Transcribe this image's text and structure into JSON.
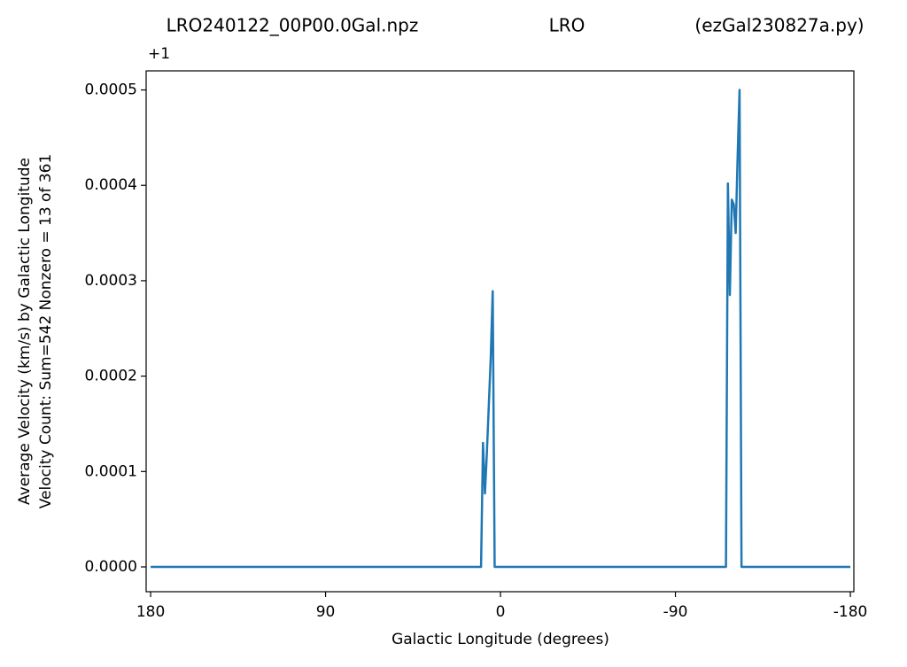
{
  "chart_data": {
    "type": "line",
    "title_parts": [
      "LRO240122_00P00.0Gal.npz",
      "LRO",
      "(ezGal230827a.py)"
    ],
    "xlabel": "Galactic Longitude (degrees)",
    "ylabel_lines": [
      "Average Velocity (km/s) by Galactic Longitude",
      "Velocity Count: Sum=542 Nonzero = 13 of 361"
    ],
    "y_offset_text": "+1",
    "x": [
      180,
      10,
      9,
      8,
      7,
      6,
      5,
      4,
      3,
      -116,
      -117,
      -118,
      -119,
      -120,
      -121,
      -122,
      -123,
      -124,
      -180
    ],
    "series": [
      {
        "color": "#1f77b4",
        "values": [
          0,
          0,
          0.00013,
          7.7e-05,
          0.00012,
          0.00017,
          0.00022,
          0.000289,
          0,
          0,
          0.000402,
          0.000285,
          0.000385,
          0.00038,
          0.00035,
          0.00043,
          0.0005,
          0,
          0
        ]
      }
    ],
    "xlim": [
      182.3,
      -181.8
    ],
    "ylim": [
      -2.6e-05,
      0.00052
    ],
    "xticks": [
      180,
      90,
      0,
      -90,
      -180
    ],
    "yticks": [
      {
        "value": 0,
        "label": "0.0000"
      },
      {
        "value": 0.0001,
        "label": "0.0001"
      },
      {
        "value": 0.0002,
        "label": "0.0002"
      },
      {
        "value": 0.0003,
        "label": "0.0003"
      },
      {
        "value": 0.0004,
        "label": "0.0004"
      },
      {
        "value": 0.0005,
        "label": "0.0005"
      }
    ]
  }
}
